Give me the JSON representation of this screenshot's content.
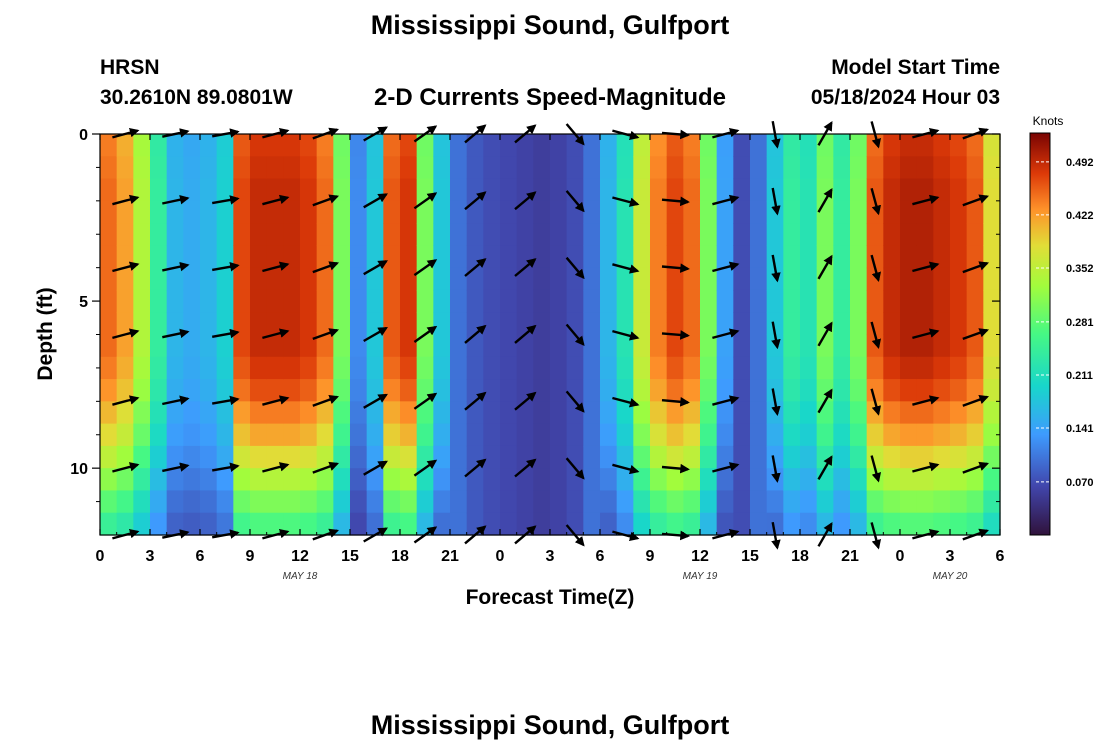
{
  "header": {
    "title": "Mississippi Sound, Gulfport",
    "station": "HRSN",
    "coords": "30.2610N  89.0801W",
    "subtitle": "2-D Currents Speed-Magnitude",
    "model_label": "Model Start Time",
    "model_time": "05/18/2024 Hour 03"
  },
  "footer": {
    "title": "Mississippi Sound, Gulfport"
  },
  "chart_data": {
    "type": "heatmap",
    "xlabel": "Forecast Time(Z)",
    "ylabel": "Depth (ft)",
    "x_ticks": [
      {
        "h": 0,
        "label": "0"
      },
      {
        "h": 3,
        "label": "3"
      },
      {
        "h": 6,
        "label": "6"
      },
      {
        "h": 9,
        "label": "9"
      },
      {
        "h": 12,
        "label": "12"
      },
      {
        "h": 15,
        "label": "15"
      },
      {
        "h": 18,
        "label": "18"
      },
      {
        "h": 21,
        "label": "21"
      },
      {
        "h": 24,
        "label": "0"
      },
      {
        "h": 27,
        "label": "3"
      },
      {
        "h": 30,
        "label": "6"
      },
      {
        "h": 33,
        "label": "9"
      },
      {
        "h": 36,
        "label": "12"
      },
      {
        "h": 39,
        "label": "15"
      },
      {
        "h": 42,
        "label": "18"
      },
      {
        "h": 45,
        "label": "21"
      },
      {
        "h": 48,
        "label": "0"
      },
      {
        "h": 51,
        "label": "3"
      },
      {
        "h": 54,
        "label": "6"
      }
    ],
    "date_labels": [
      {
        "h": 12,
        "label": "MAY 18"
      },
      {
        "h": 36,
        "label": "MAY 19"
      },
      {
        "h": 51,
        "label": "MAY 20"
      }
    ],
    "y_ticks": [
      0,
      5,
      10
    ],
    "xlim": [
      0,
      54
    ],
    "ylim": [
      12,
      0
    ],
    "colorbar": {
      "label": "Knots",
      "ticks": [
        "0.492",
        "0.422",
        "0.352",
        "0.281",
        "0.211",
        "0.141",
        "0.070"
      ],
      "range": [
        0.0,
        0.53
      ]
    },
    "depth_profile": [
      0.98,
      0.99,
      1.0,
      1.0,
      1.0,
      1.0,
      1.0,
      1.0,
      1.0,
      1.0,
      0.98,
      0.95,
      0.9,
      0.85,
      0.78,
      0.7,
      0.62,
      0.55
    ],
    "surface_speed_by_hour": [
      0.45,
      0.42,
      0.34,
      0.24,
      0.16,
      0.15,
      0.16,
      0.19,
      0.47,
      0.49,
      0.49,
      0.49,
      0.48,
      0.45,
      0.3,
      0.12,
      0.18,
      0.46,
      0.48,
      0.3,
      0.18,
      0.1,
      0.08,
      0.07,
      0.065,
      0.06,
      0.055,
      0.06,
      0.07,
      0.1,
      0.16,
      0.22,
      0.36,
      0.44,
      0.47,
      0.45,
      0.3,
      0.14,
      0.07,
      0.1,
      0.18,
      0.24,
      0.22,
      0.3,
      0.24,
      0.3,
      0.46,
      0.49,
      0.5,
      0.5,
      0.49,
      0.48,
      0.46,
      0.38
    ],
    "arrow_rows_ft": [
      0,
      2,
      4,
      6,
      8,
      10,
      12
    ],
    "arrow_cols_h": [
      1.5,
      4.5,
      7.5,
      10.5,
      13.5,
      16.5,
      19.5,
      22.5,
      25.5,
      28.5,
      31.5,
      34.5,
      37.5,
      40.5,
      43.5,
      46.5,
      49.5,
      52.5
    ],
    "arrow_dir_by_col_deg": [
      -15,
      -12,
      -10,
      -15,
      -20,
      -30,
      -35,
      -40,
      -40,
      50,
      15,
      5,
      -15,
      80,
      -60,
      75,
      -15,
      -20
    ]
  }
}
